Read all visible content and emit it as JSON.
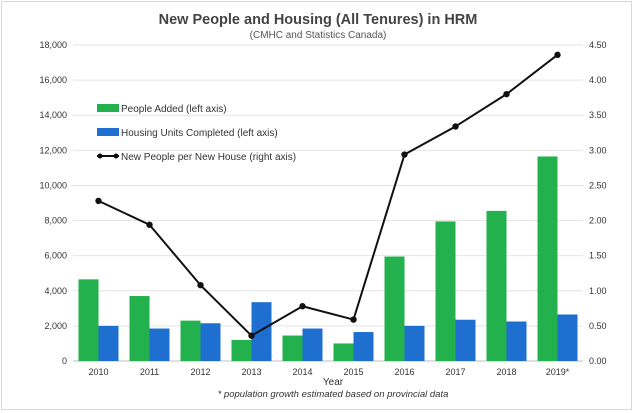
{
  "chart_data": {
    "type": "bar",
    "title": "New People and Housing (All Tenures) in HRM",
    "subtitle": "(CMHC and Statistics Canada)",
    "xlabel": "Year",
    "footnote": "* population growth estimated based on provincial data",
    "categories": [
      "2010",
      "2011",
      "2012",
      "2013",
      "2014",
      "2015",
      "2016",
      "2017",
      "2018",
      "2019*"
    ],
    "series": [
      {
        "name": "People Added (left axis)",
        "type": "bar",
        "axis": "left",
        "color": "#22b14c",
        "values": [
          4650,
          3700,
          2300,
          1200,
          1450,
          1000,
          5950,
          7950,
          8550,
          11650
        ]
      },
      {
        "name": "Housing Units Completed (left axis)",
        "type": "bar",
        "axis": "left",
        "color": "#1f6fd1",
        "values": [
          2000,
          1850,
          2150,
          3350,
          1850,
          1650,
          2000,
          2350,
          2250,
          2650
        ]
      },
      {
        "name": "New People per New House (right axis)",
        "type": "line",
        "axis": "right",
        "color": "#111111",
        "values": [
          2.28,
          1.94,
          1.08,
          0.36,
          0.78,
          0.59,
          2.94,
          3.34,
          3.8,
          4.36
        ]
      }
    ],
    "left_axis": {
      "min": 0,
      "max": 18000,
      "ticks": [
        0,
        2000,
        4000,
        6000,
        8000,
        10000,
        12000,
        14000,
        16000,
        18000
      ],
      "tick_labels": [
        "0",
        "2,000",
        "4,000",
        "6,000",
        "8,000",
        "10,000",
        "12,000",
        "14,000",
        "16,000",
        "18,000"
      ]
    },
    "right_axis": {
      "min": 0,
      "max": 4.5,
      "ticks": [
        0,
        0.5,
        1,
        1.5,
        2,
        2.5,
        3,
        3.5,
        4,
        4.5
      ],
      "tick_labels": [
        "0.00",
        "0.50",
        "1.00",
        "1.50",
        "2.00",
        "2.50",
        "3.00",
        "3.50",
        "4.00",
        "4.50"
      ]
    },
    "grid": true,
    "legend_position": "top-left"
  }
}
